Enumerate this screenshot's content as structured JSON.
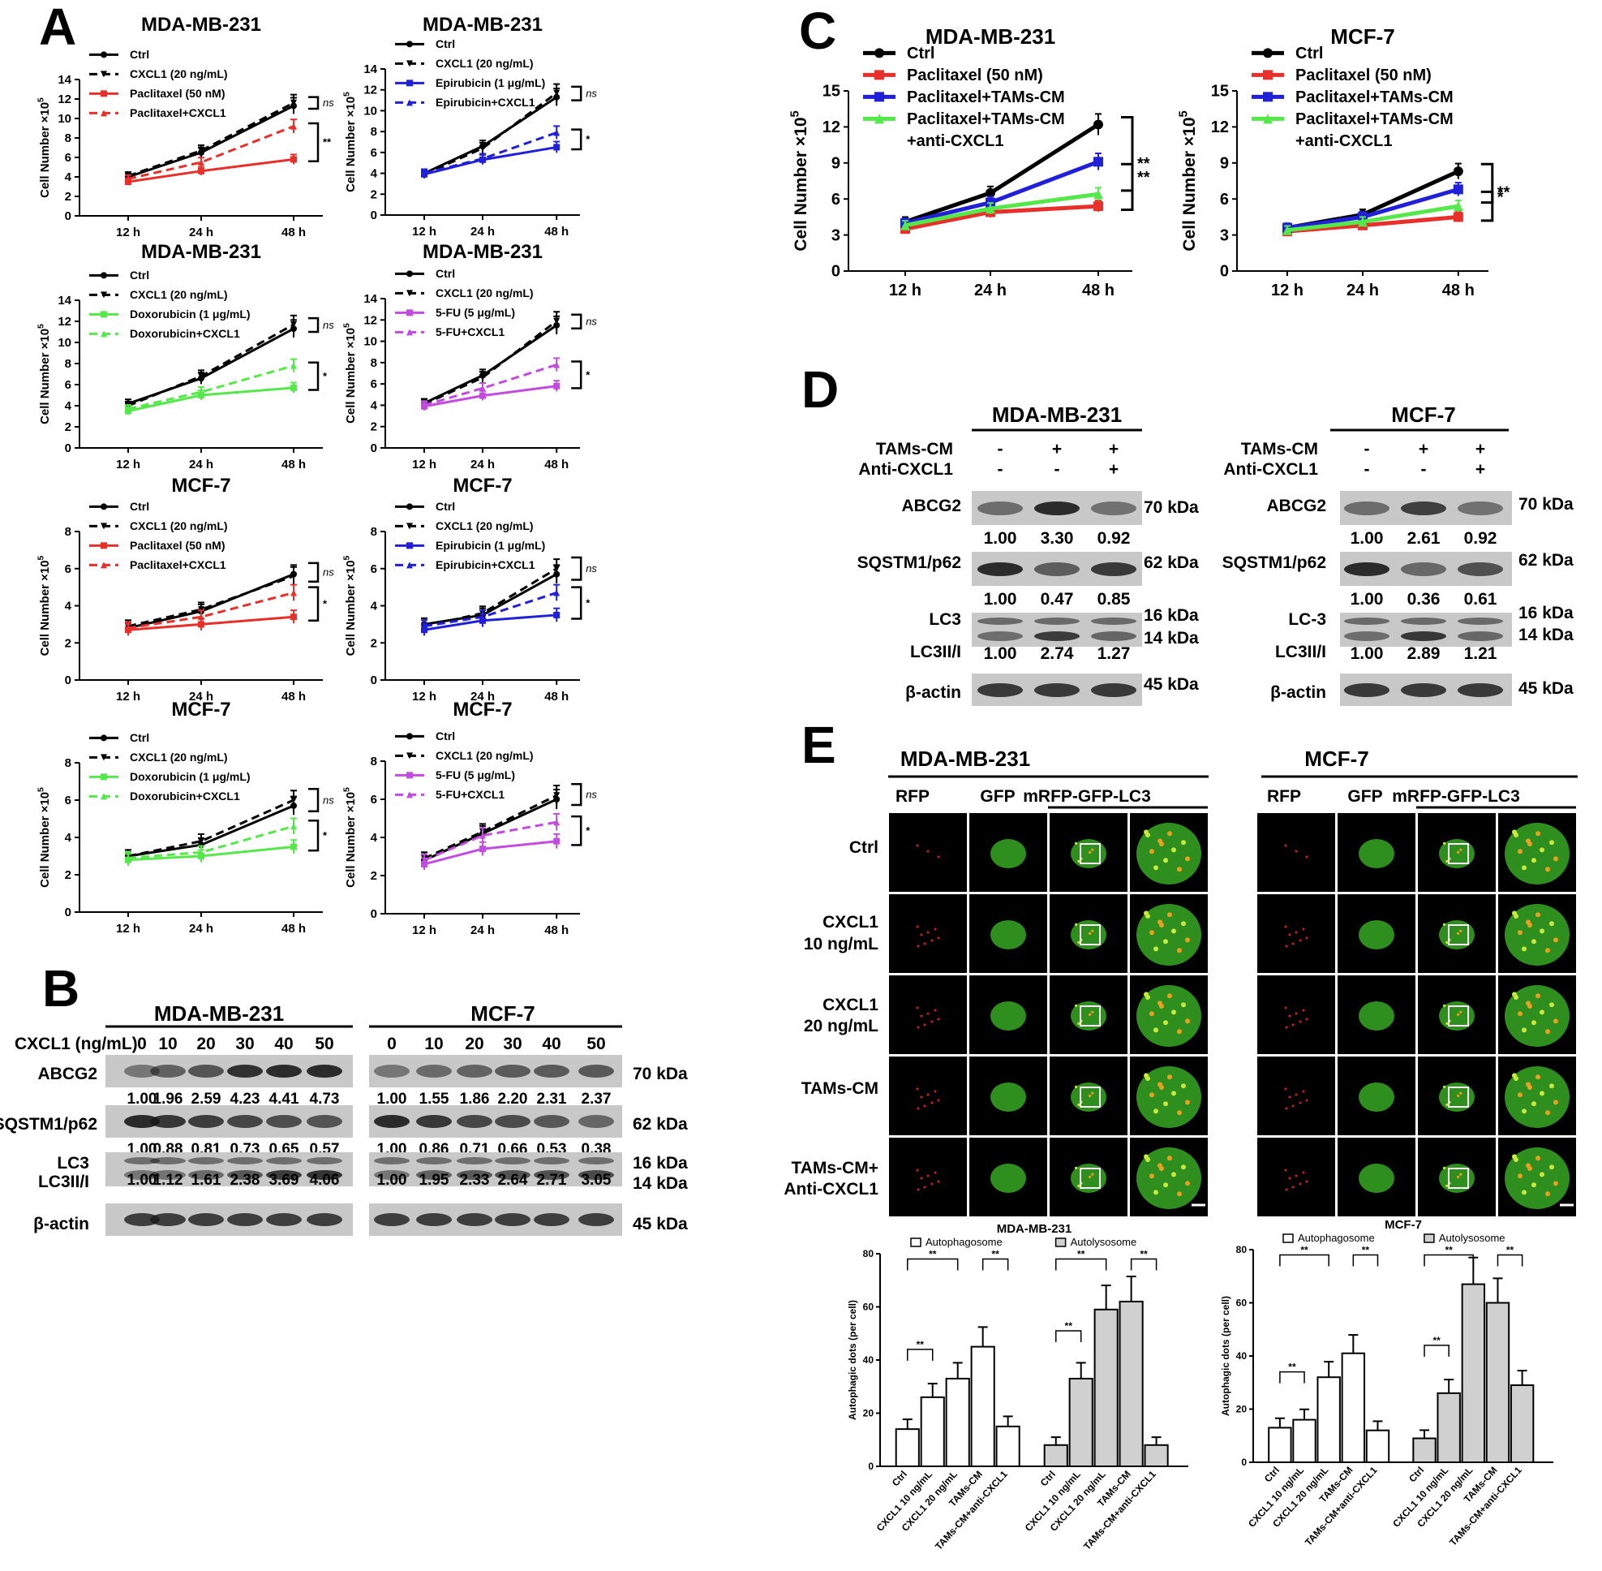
{
  "panels": {
    "A": "A",
    "B": "B",
    "C": "C",
    "D": "D",
    "E": "E"
  },
  "colors": {
    "ctrl": "#000000",
    "red": "#e8302a",
    "blue": "#2020d8",
    "green": "#55e84a",
    "purple": "#c24be0",
    "gray": "#d0d0d0"
  },
  "x_ticks": [
    "12 h",
    "24 h",
    "48 h"
  ],
  "ylabel": "Cell Number ×10",
  "ylabel_sup": "5",
  "charts_A": [
    {
      "title": "MDA-MB-231",
      "legend": [
        "Ctrl",
        "CXCL1 (20 ng/mL)",
        "Paclitaxel (50 nM)",
        "Paclitaxel+CXCL1"
      ],
      "drug_color": "red",
      "ylim": [
        0,
        14
      ],
      "yticks": [
        0,
        2,
        4,
        6,
        8,
        10,
        12,
        14
      ],
      "series": {
        "ctrl": [
          4.0,
          6.5,
          11.3
        ],
        "cxcl1": [
          4.1,
          6.7,
          11.6
        ],
        "drug": [
          3.5,
          4.6,
          5.8
        ],
        "drug_cxcl1": [
          3.8,
          5.5,
          9.2
        ]
      },
      "sig": [
        "ns",
        "**"
      ]
    },
    {
      "title": "MDA-MB-231",
      "legend": [
        "Ctrl",
        "CXCL1 (20 ng/mL)",
        "Epirubicin (1 μg/mL)",
        "Epirubicin+CXCL1"
      ],
      "drug_color": "blue",
      "ylim": [
        0,
        14
      ],
      "yticks": [
        0,
        2,
        4,
        6,
        8,
        10,
        12,
        14
      ],
      "series": {
        "ctrl": [
          4.0,
          6.6,
          11.3
        ],
        "cxcl1": [
          3.9,
          6.4,
          11.7
        ],
        "drug": [
          3.9,
          5.3,
          6.5
        ],
        "drug_cxcl1": [
          4.0,
          5.4,
          7.9
        ]
      },
      "sig": [
        "ns",
        "*"
      ]
    },
    {
      "title": "MDA-MB-231",
      "legend": [
        "Ctrl",
        "CXCL1 (20 ng/mL)",
        "Doxorubicin (1 μg/mL)",
        "Doxorubicin+CXCL1"
      ],
      "drug_color": "green",
      "ylim": [
        0,
        14
      ],
      "yticks": [
        0,
        2,
        4,
        6,
        8,
        10,
        12,
        14
      ],
      "series": {
        "ctrl": [
          4.2,
          6.6,
          11.3
        ],
        "cxcl1": [
          4.0,
          6.8,
          11.7
        ],
        "drug": [
          3.5,
          5.0,
          5.7
        ],
        "drug_cxcl1": [
          3.7,
          5.3,
          7.8
        ]
      },
      "sig": [
        "ns",
        "*"
      ]
    },
    {
      "title": "MDA-MB-231",
      "legend": [
        "Ctrl",
        "CXCL1 (20 ng/mL)",
        "5-FU (5 μg/mL)",
        "5-FU+CXCL1"
      ],
      "drug_color": "purple",
      "ylim": [
        0,
        14
      ],
      "yticks": [
        0,
        2,
        4,
        6,
        8,
        10,
        12,
        14
      ],
      "series": {
        "ctrl": [
          4.2,
          6.8,
          11.5
        ],
        "cxcl1": [
          4.1,
          6.6,
          11.9
        ],
        "drug": [
          3.9,
          4.9,
          5.8
        ],
        "drug_cxcl1": [
          4.0,
          5.6,
          7.8
        ]
      },
      "sig": [
        "ns",
        "*"
      ]
    },
    {
      "title": "MCF-7",
      "legend": [
        "Ctrl",
        "CXCL1 (20 ng/mL)",
        "Paclitaxel (50 nM)",
        "Paclitaxel+CXCL1"
      ],
      "drug_color": "red",
      "ylim": [
        0,
        8
      ],
      "yticks": [
        0,
        2,
        4,
        6,
        8
      ],
      "series": {
        "ctrl": [
          2.8,
          3.7,
          5.7
        ],
        "cxcl1": [
          2.9,
          3.8,
          5.6
        ],
        "drug": [
          2.7,
          3.0,
          3.4
        ],
        "drug_cxcl1": [
          2.8,
          3.4,
          4.7
        ]
      },
      "sig": [
        "ns",
        "*"
      ]
    },
    {
      "title": "MCF-7",
      "legend": [
        "Ctrl",
        "CXCL1 (20 ng/mL)",
        "Epirubicin (1 μg/mL)",
        "Epirubicin+CXCL1"
      ],
      "drug_color": "blue",
      "ylim": [
        0,
        8
      ],
      "yticks": [
        0,
        2,
        4,
        6,
        8
      ],
      "series": {
        "ctrl": [
          3.0,
          3.5,
          5.7
        ],
        "cxcl1": [
          2.9,
          3.6,
          6.0
        ],
        "drug": [
          2.7,
          3.2,
          3.5
        ],
        "drug_cxcl1": [
          2.9,
          3.4,
          4.7
        ]
      },
      "sig": [
        "ns",
        "*"
      ]
    },
    {
      "title": "MCF-7",
      "legend": [
        "Ctrl",
        "CXCL1 (20 ng/mL)",
        "Doxorubicin (1 μg/mL)",
        "Doxorubicin+CXCL1"
      ],
      "drug_color": "green",
      "ylim": [
        0,
        8
      ],
      "yticks": [
        0,
        2,
        4,
        6,
        8
      ],
      "series": {
        "ctrl": [
          3.0,
          3.6,
          5.7
        ],
        "cxcl1": [
          3.0,
          3.8,
          6.0
        ],
        "drug": [
          2.8,
          3.0,
          3.5
        ],
        "drug_cxcl1": [
          2.9,
          3.2,
          4.6
        ]
      },
      "sig": [
        "ns",
        "*"
      ]
    },
    {
      "title": "MCF-7",
      "legend": [
        "Ctrl",
        "CXCL1 (20 ng/mL)",
        "5-FU (5 μg/mL)",
        "5-FU+CXCL1"
      ],
      "drug_color": "purple",
      "ylim": [
        0,
        8
      ],
      "yticks": [
        0,
        2,
        4,
        6,
        8
      ],
      "series": {
        "ctrl": [
          2.8,
          4.2,
          6.0
        ],
        "cxcl1": [
          2.9,
          4.3,
          6.2
        ],
        "drug": [
          2.6,
          3.4,
          3.8
        ],
        "drug_cxcl1": [
          2.8,
          4.1,
          4.8
        ]
      },
      "sig": [
        "ns",
        "*"
      ]
    }
  ],
  "charts_C": [
    {
      "title": "MDA-MB-231",
      "legend": [
        "Ctrl",
        "Paclitaxel (50 nM)",
        "Paclitaxel+TAMs-CM",
        "Paclitaxel+TAMs-CM",
        "+anti-CXCL1"
      ],
      "ylim": [
        0,
        15
      ],
      "yticks": [
        0,
        3,
        6,
        9,
        12,
        15
      ],
      "series": {
        "ctrl": [
          4.1,
          6.5,
          12.2
        ],
        "pac": [
          3.5,
          4.9,
          5.4
        ],
        "pac_tams": [
          4.0,
          5.7,
          9.1
        ],
        "pac_tams_anti": [
          3.8,
          5.2,
          6.4
        ]
      },
      "sig": [
        "**",
        "**"
      ]
    },
    {
      "title": "MCF-7",
      "legend": [
        "Ctrl",
        "Paclitaxel (50 nM)",
        "Paclitaxel+TAMs-CM",
        "Paclitaxel+TAMs-CM",
        "+anti-CXCL1"
      ],
      "ylim": [
        0,
        15
      ],
      "yticks": [
        0,
        3,
        6,
        9,
        12,
        15
      ],
      "series": {
        "ctrl": [
          3.6,
          4.7,
          8.3
        ],
        "pac": [
          3.3,
          3.8,
          4.5
        ],
        "pac_tams": [
          3.6,
          4.5,
          6.8
        ],
        "pac_tams_anti": [
          3.4,
          4.1,
          5.4
        ]
      },
      "sig": [
        "**",
        "*"
      ]
    }
  ],
  "blot_B": {
    "cell_lines": [
      "MDA-MB-231",
      "MCF-7"
    ],
    "cxcl1_label": "CXCL1 (ng/mL)",
    "conc": [
      "0",
      "10",
      "20",
      "30",
      "40",
      "50"
    ],
    "rows": [
      "ABCG2",
      "SQSTM1/p62",
      "LC3",
      "LC3II/I",
      "β-actin"
    ],
    "kda": [
      "70 kDa",
      "62 kDa",
      "16 kDa",
      "14 kDa",
      "45 kDa"
    ],
    "abcg2": [
      [
        "1.00",
        "1.96",
        "2.59",
        "4.23",
        "4.41",
        "4.73"
      ],
      [
        "1.00",
        "1.55",
        "1.86",
        "2.20",
        "2.31",
        "2.37"
      ]
    ],
    "p62": [
      [
        "1.00",
        "0.88",
        "0.81",
        "0.73",
        "0.65",
        "0.57"
      ],
      [
        "1.00",
        "0.86",
        "0.71",
        "0.66",
        "0.53",
        "0.38"
      ]
    ],
    "lc3": [
      [
        "1.00",
        "1.12",
        "1.61",
        "2.38",
        "3.69",
        "4.06"
      ],
      [
        "1.00",
        "1.95",
        "2.33",
        "2.64",
        "2.71",
        "3.05"
      ]
    ]
  },
  "blot_D": {
    "cell_lines": [
      "MDA-MB-231",
      "MCF-7"
    ],
    "tams_label": "TAMs-CM",
    "anti_label": "Anti-CXCL1",
    "tams": [
      "-",
      "+",
      "+"
    ],
    "anti": [
      "-",
      "-",
      "+"
    ],
    "rows_left": [
      "ABCG2",
      "SQSTM1/p62",
      "LC3",
      "LC3II/I",
      "β-actin"
    ],
    "rows_right": [
      "ABCG2",
      "SQSTM1/p62",
      "LC-3",
      "LC3II/I",
      "β-actin"
    ],
    "kda": [
      "70 kDa",
      "62 kDa",
      "16 kDa",
      "14 kDa",
      "45 kDa"
    ],
    "abcg2": [
      [
        "1.00",
        "3.30",
        "0.92"
      ],
      [
        "1.00",
        "2.61",
        "0.92"
      ]
    ],
    "p62": [
      [
        "1.00",
        "0.47",
        "0.85"
      ],
      [
        "1.00",
        "0.36",
        "0.61"
      ]
    ],
    "lc3": [
      [
        "1.00",
        "2.74",
        "1.27"
      ],
      [
        "1.00",
        "2.89",
        "1.21"
      ]
    ]
  },
  "micro_E": {
    "cell_lines": [
      "MDA-MB-231",
      "MCF-7"
    ],
    "cols": [
      "RFP",
      "GFP",
      "mRFP-GFP-LC3"
    ],
    "rows": [
      "Ctrl",
      "CXCL1",
      "10 ng/mL",
      "CXCL1",
      "20 ng/mL",
      "TAMs-CM",
      "TAMs-CM+",
      "Anti-CXCL1"
    ]
  },
  "bar_E": [
    {
      "title": "MDA-MB-231",
      "legend": [
        "Autophagosome",
        "Autolysosome"
      ],
      "ylabel": "Autophagic dots (per cell)",
      "ylim": [
        0,
        80
      ],
      "yticks": [
        0,
        20,
        40,
        60,
        80
      ],
      "categories": [
        "Ctrl",
        "CXCL1 10 ng/mL",
        "CXCL1 20 ng/mL",
        "TAMs-CM",
        "TAMs-CM+anti-CXCL1"
      ],
      "autophagosome": [
        14,
        26,
        33,
        45,
        15
      ],
      "autolysosome": [
        8,
        33,
        59,
        62,
        8
      ],
      "sig": [
        "**",
        "**",
        "**",
        "**",
        "**",
        "**"
      ]
    },
    {
      "title": "MCF-7",
      "legend": [
        "Autophagosome",
        "Autolysosome"
      ],
      "ylabel": "Autophagic dots (per cell)",
      "ylim": [
        0,
        80
      ],
      "yticks": [
        0,
        20,
        40,
        60,
        80
      ],
      "categories": [
        "Ctrl",
        "CXCL1 10 ng/mL",
        "CXCL1 20 ng/mL",
        "TAMs-CM",
        "TAMs-CM+anti-CXCL1"
      ],
      "autophagosome": [
        13,
        16,
        32,
        41,
        12
      ],
      "autolysosome": [
        9,
        26,
        67,
        60,
        29
      ],
      "sig": [
        "**",
        "**",
        "**",
        "**",
        "**",
        "**"
      ]
    }
  ]
}
